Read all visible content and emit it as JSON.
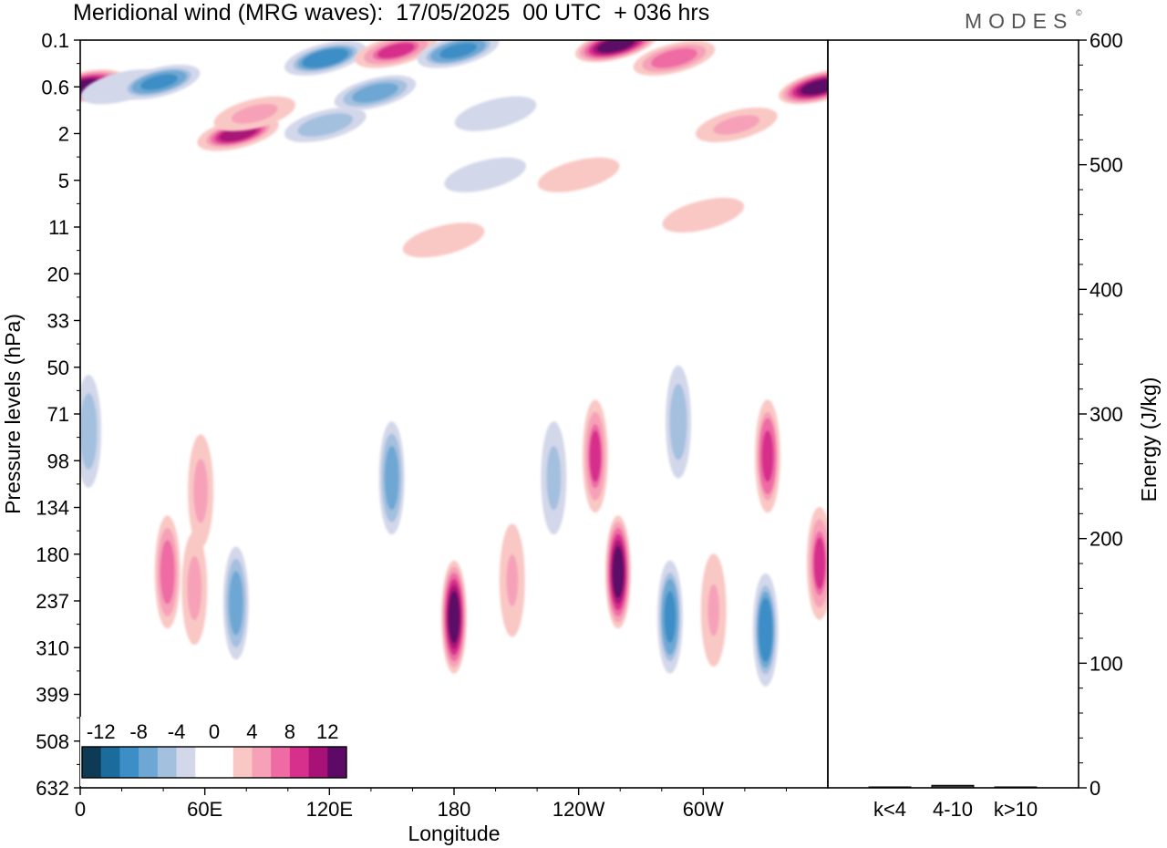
{
  "title": "Meridional wind (MRG waves):  17/05/2025  00 UTC  + 036 hrs",
  "brand": "MODES",
  "brand_mark": "©",
  "chart_data": [
    {
      "type": "heatmap",
      "title": "Meridional wind (MRG waves):  17/05/2025  00 UTC  + 036 hrs",
      "xlabel": "Longitude",
      "ylabel": "Pressure levels (hPa)",
      "x_ticks": [
        "0",
        "60E",
        "120E",
        "180",
        "120W",
        "60W"
      ],
      "x_tick_lon": [
        0,
        60,
        120,
        180,
        240,
        300
      ],
      "xlim": [
        0,
        360
      ],
      "y_ticks": [
        "0.1",
        "0.6",
        "2",
        "5",
        "11",
        "20",
        "33",
        "50",
        "71",
        "98",
        "134",
        "180",
        "237",
        "310",
        "399",
        "508",
        "632"
      ],
      "y_order": "top-to-bottom",
      "colorbar": {
        "labels": [
          "-12",
          "-8",
          "-4",
          "0",
          "4",
          "8",
          "12"
        ],
        "levels": [
          -14,
          -12,
          -10,
          -8,
          -6,
          -4,
          -2,
          0,
          2,
          4,
          6,
          8,
          10,
          12,
          14
        ],
        "colors": [
          "#0d3b55",
          "#1b6c9c",
          "#3d8ec6",
          "#6ea7d3",
          "#a4c0df",
          "#d3d7ea",
          "#ffffff",
          "#ffffff",
          "#f9c8c4",
          "#f6a1b8",
          "#ee6ca3",
          "#d72f8c",
          "#a81276",
          "#5c0a66"
        ]
      },
      "features": [
        {
          "lon": 1,
          "p": 0.6,
          "v": 13
        },
        {
          "lon": 20,
          "p": 0.6,
          "v": -4
        },
        {
          "lon": 38,
          "p": 0.5,
          "v": -9
        },
        {
          "lon": 76,
          "p": 2,
          "v": 10
        },
        {
          "lon": 84,
          "p": 1.2,
          "v": 5
        },
        {
          "lon": 118,
          "p": 0.2,
          "v": -10
        },
        {
          "lon": 152,
          "p": 0.15,
          "v": 8
        },
        {
          "lon": 142,
          "p": 0.7,
          "v": -7
        },
        {
          "lon": 118,
          "p": 1.6,
          "v": -6
        },
        {
          "lon": 182,
          "p": 0.15,
          "v": -9
        },
        {
          "lon": 200,
          "p": 1.2,
          "v": -3
        },
        {
          "lon": 258,
          "p": 0.12,
          "v": 13
        },
        {
          "lon": 286,
          "p": 0.2,
          "v": 7
        },
        {
          "lon": 356,
          "p": 0.6,
          "v": 14
        },
        {
          "lon": 316,
          "p": 1.6,
          "v": 5
        },
        {
          "lon": 195,
          "p": 4.5,
          "v": -4
        },
        {
          "lon": 240,
          "p": 4.5,
          "v": 3
        },
        {
          "lon": 300,
          "p": 9,
          "v": 3
        },
        {
          "lon": 175,
          "p": 13,
          "v": 3
        },
        {
          "lon": 58,
          "p": 120,
          "v": 5
        },
        {
          "lon": 42,
          "p": 200,
          "v": 7
        },
        {
          "lon": 75,
          "p": 240,
          "v": -8
        },
        {
          "lon": 55,
          "p": 220,
          "v": 5
        },
        {
          "lon": 150,
          "p": 110,
          "v": -7
        },
        {
          "lon": 180,
          "p": 260,
          "v": 12
        },
        {
          "lon": 208,
          "p": 210,
          "v": 4
        },
        {
          "lon": 228,
          "p": 110,
          "v": -5
        },
        {
          "lon": 248,
          "p": 95,
          "v": 8
        },
        {
          "lon": 259,
          "p": 200,
          "v": 14
        },
        {
          "lon": 284,
          "p": 260,
          "v": -9
        },
        {
          "lon": 288,
          "p": 75,
          "v": -6
        },
        {
          "lon": 305,
          "p": 250,
          "v": 4
        },
        {
          "lon": 330,
          "p": 280,
          "v": -10
        },
        {
          "lon": 331,
          "p": 95,
          "v": 9
        },
        {
          "lon": 356,
          "p": 190,
          "v": 8
        },
        {
          "lon": 4,
          "p": 80,
          "v": -6
        }
      ]
    },
    {
      "type": "bar",
      "ylabel": "Energy (J/kg)",
      "categories": [
        "k<4",
        "4-10",
        "k>10"
      ],
      "values": [
        0.5,
        2,
        0.5
      ],
      "ylim": [
        0,
        600
      ],
      "y_ticks": [
        "0",
        "100",
        "200",
        "300",
        "400",
        "500",
        "600"
      ]
    }
  ]
}
